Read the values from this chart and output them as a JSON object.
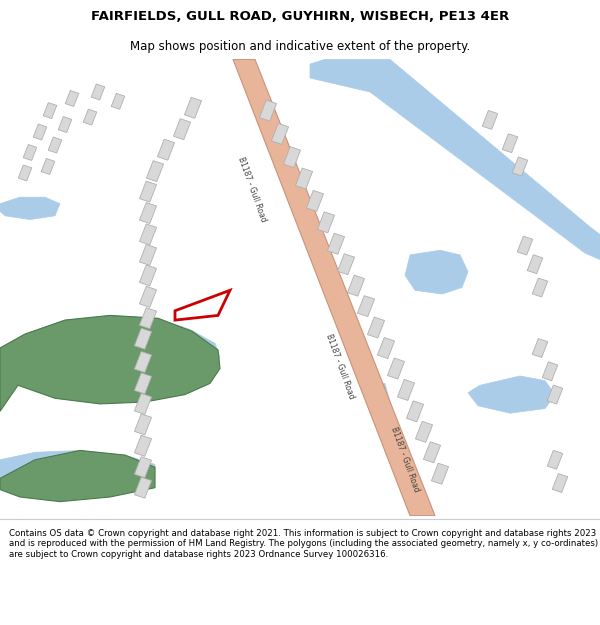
{
  "title": "FAIRFIELDS, GULL ROAD, GUYHIRN, WISBECH, PE13 4ER",
  "subtitle": "Map shows position and indicative extent of the property.",
  "footer": "Contains OS data © Crown copyright and database right 2021. This information is subject to Crown copyright and database rights 2023 and is reproduced with the permission of HM Land Registry. The polygons (including the associated geometry, namely x, y co-ordinates) are subject to Crown copyright and database rights 2023 Ordnance Survey 100026316.",
  "road_color": "#e8b49a",
  "road_edge_color": "#c8947a",
  "water_color": "#aacce8",
  "green_color": "#6a9a6a",
  "green_edge": "#4a7a4a",
  "building_color": "#d8d8d8",
  "building_edge": "#b0b0b0",
  "plot_edge": "#cc0000",
  "map_bg": "#f8f8f8",
  "road_label": "B1187 - Gull Road",
  "road_label_fontsize": 5.5
}
